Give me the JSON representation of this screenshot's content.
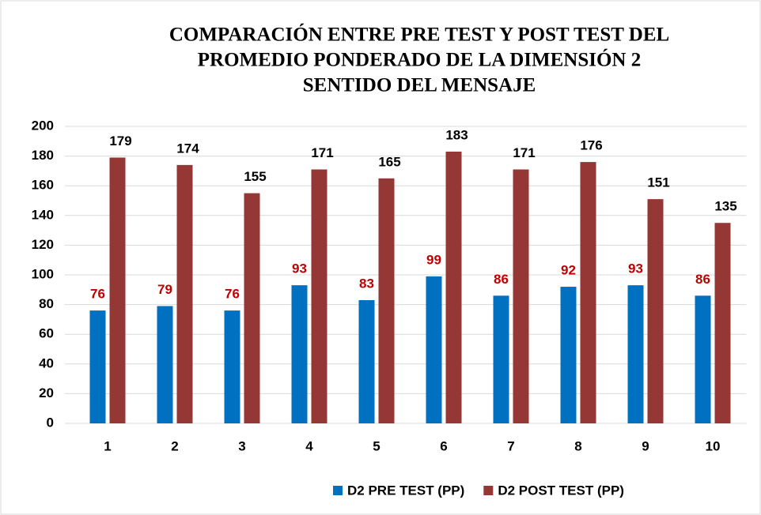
{
  "chart_data": {
    "type": "bar",
    "title": [
      "COMPARACIÓN ENTRE  PRE TEST Y POST TEST DEL",
      "PROMEDIO PONDERADO DE LA DIMENSIÓN 2",
      "SENTIDO DEL MENSAJE"
    ],
    "categories": [
      "1",
      "2",
      "3",
      "4",
      "5",
      "6",
      "7",
      "8",
      "9",
      "10"
    ],
    "series": [
      {
        "name": "D2 PRE TEST (PP)",
        "color": "#0070c0",
        "label_color": "#c00000",
        "values": [
          76,
          79,
          76,
          93,
          83,
          99,
          86,
          92,
          93,
          86
        ]
      },
      {
        "name": "D2 POST TEST (PP)",
        "color": "#953735",
        "label_color": "#000000",
        "values": [
          179,
          174,
          155,
          171,
          165,
          183,
          171,
          176,
          151,
          135
        ]
      }
    ],
    "ylim": [
      0,
      200
    ],
    "yticks": [
      0,
      20,
      40,
      60,
      80,
      100,
      120,
      140,
      160,
      180,
      200
    ],
    "grid": true,
    "legend": "bottom"
  }
}
